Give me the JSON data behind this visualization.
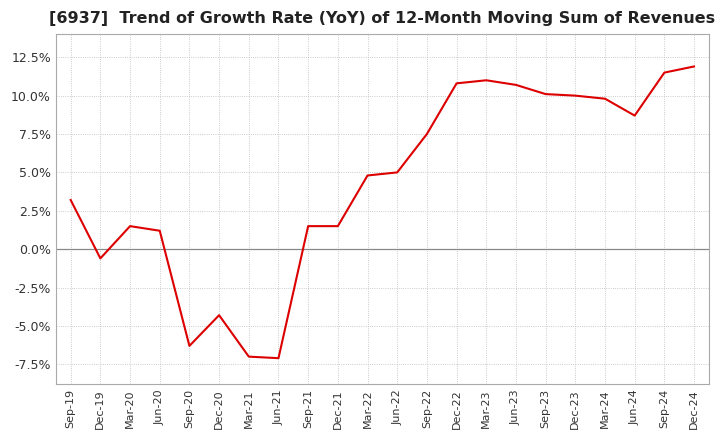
{
  "title": "[6937]  Trend of Growth Rate (YoY) of 12-Month Moving Sum of Revenues",
  "title_fontsize": 11.5,
  "line_color": "#dd0000",
  "background_color": "#ffffff",
  "plot_bg_color": "#ffffff",
  "grid_color": "#bbbbbb",
  "zero_line_color": "#888888",
  "ylim": [
    -8.8,
    14.0
  ],
  "yticks": [
    -7.5,
    -5.0,
    -2.5,
    0.0,
    2.5,
    5.0,
    7.5,
    10.0,
    12.5
  ],
  "x_labels": [
    "Sep-19",
    "Dec-19",
    "Mar-20",
    "Jun-20",
    "Sep-20",
    "Dec-20",
    "Mar-21",
    "Jun-21",
    "Sep-21",
    "Dec-21",
    "Mar-22",
    "Jun-22",
    "Sep-22",
    "Dec-22",
    "Mar-23",
    "Jun-23",
    "Sep-23",
    "Dec-23",
    "Mar-24",
    "Jun-24",
    "Sep-24",
    "Dec-24"
  ],
  "y_values": [
    3.2,
    -0.6,
    1.5,
    1.2,
    -6.3,
    -4.3,
    -7.0,
    -7.1,
    1.5,
    1.5,
    4.8,
    5.0,
    7.5,
    10.8,
    11.0,
    10.7,
    10.1,
    10.0,
    9.8,
    8.7,
    11.5,
    11.9
  ]
}
